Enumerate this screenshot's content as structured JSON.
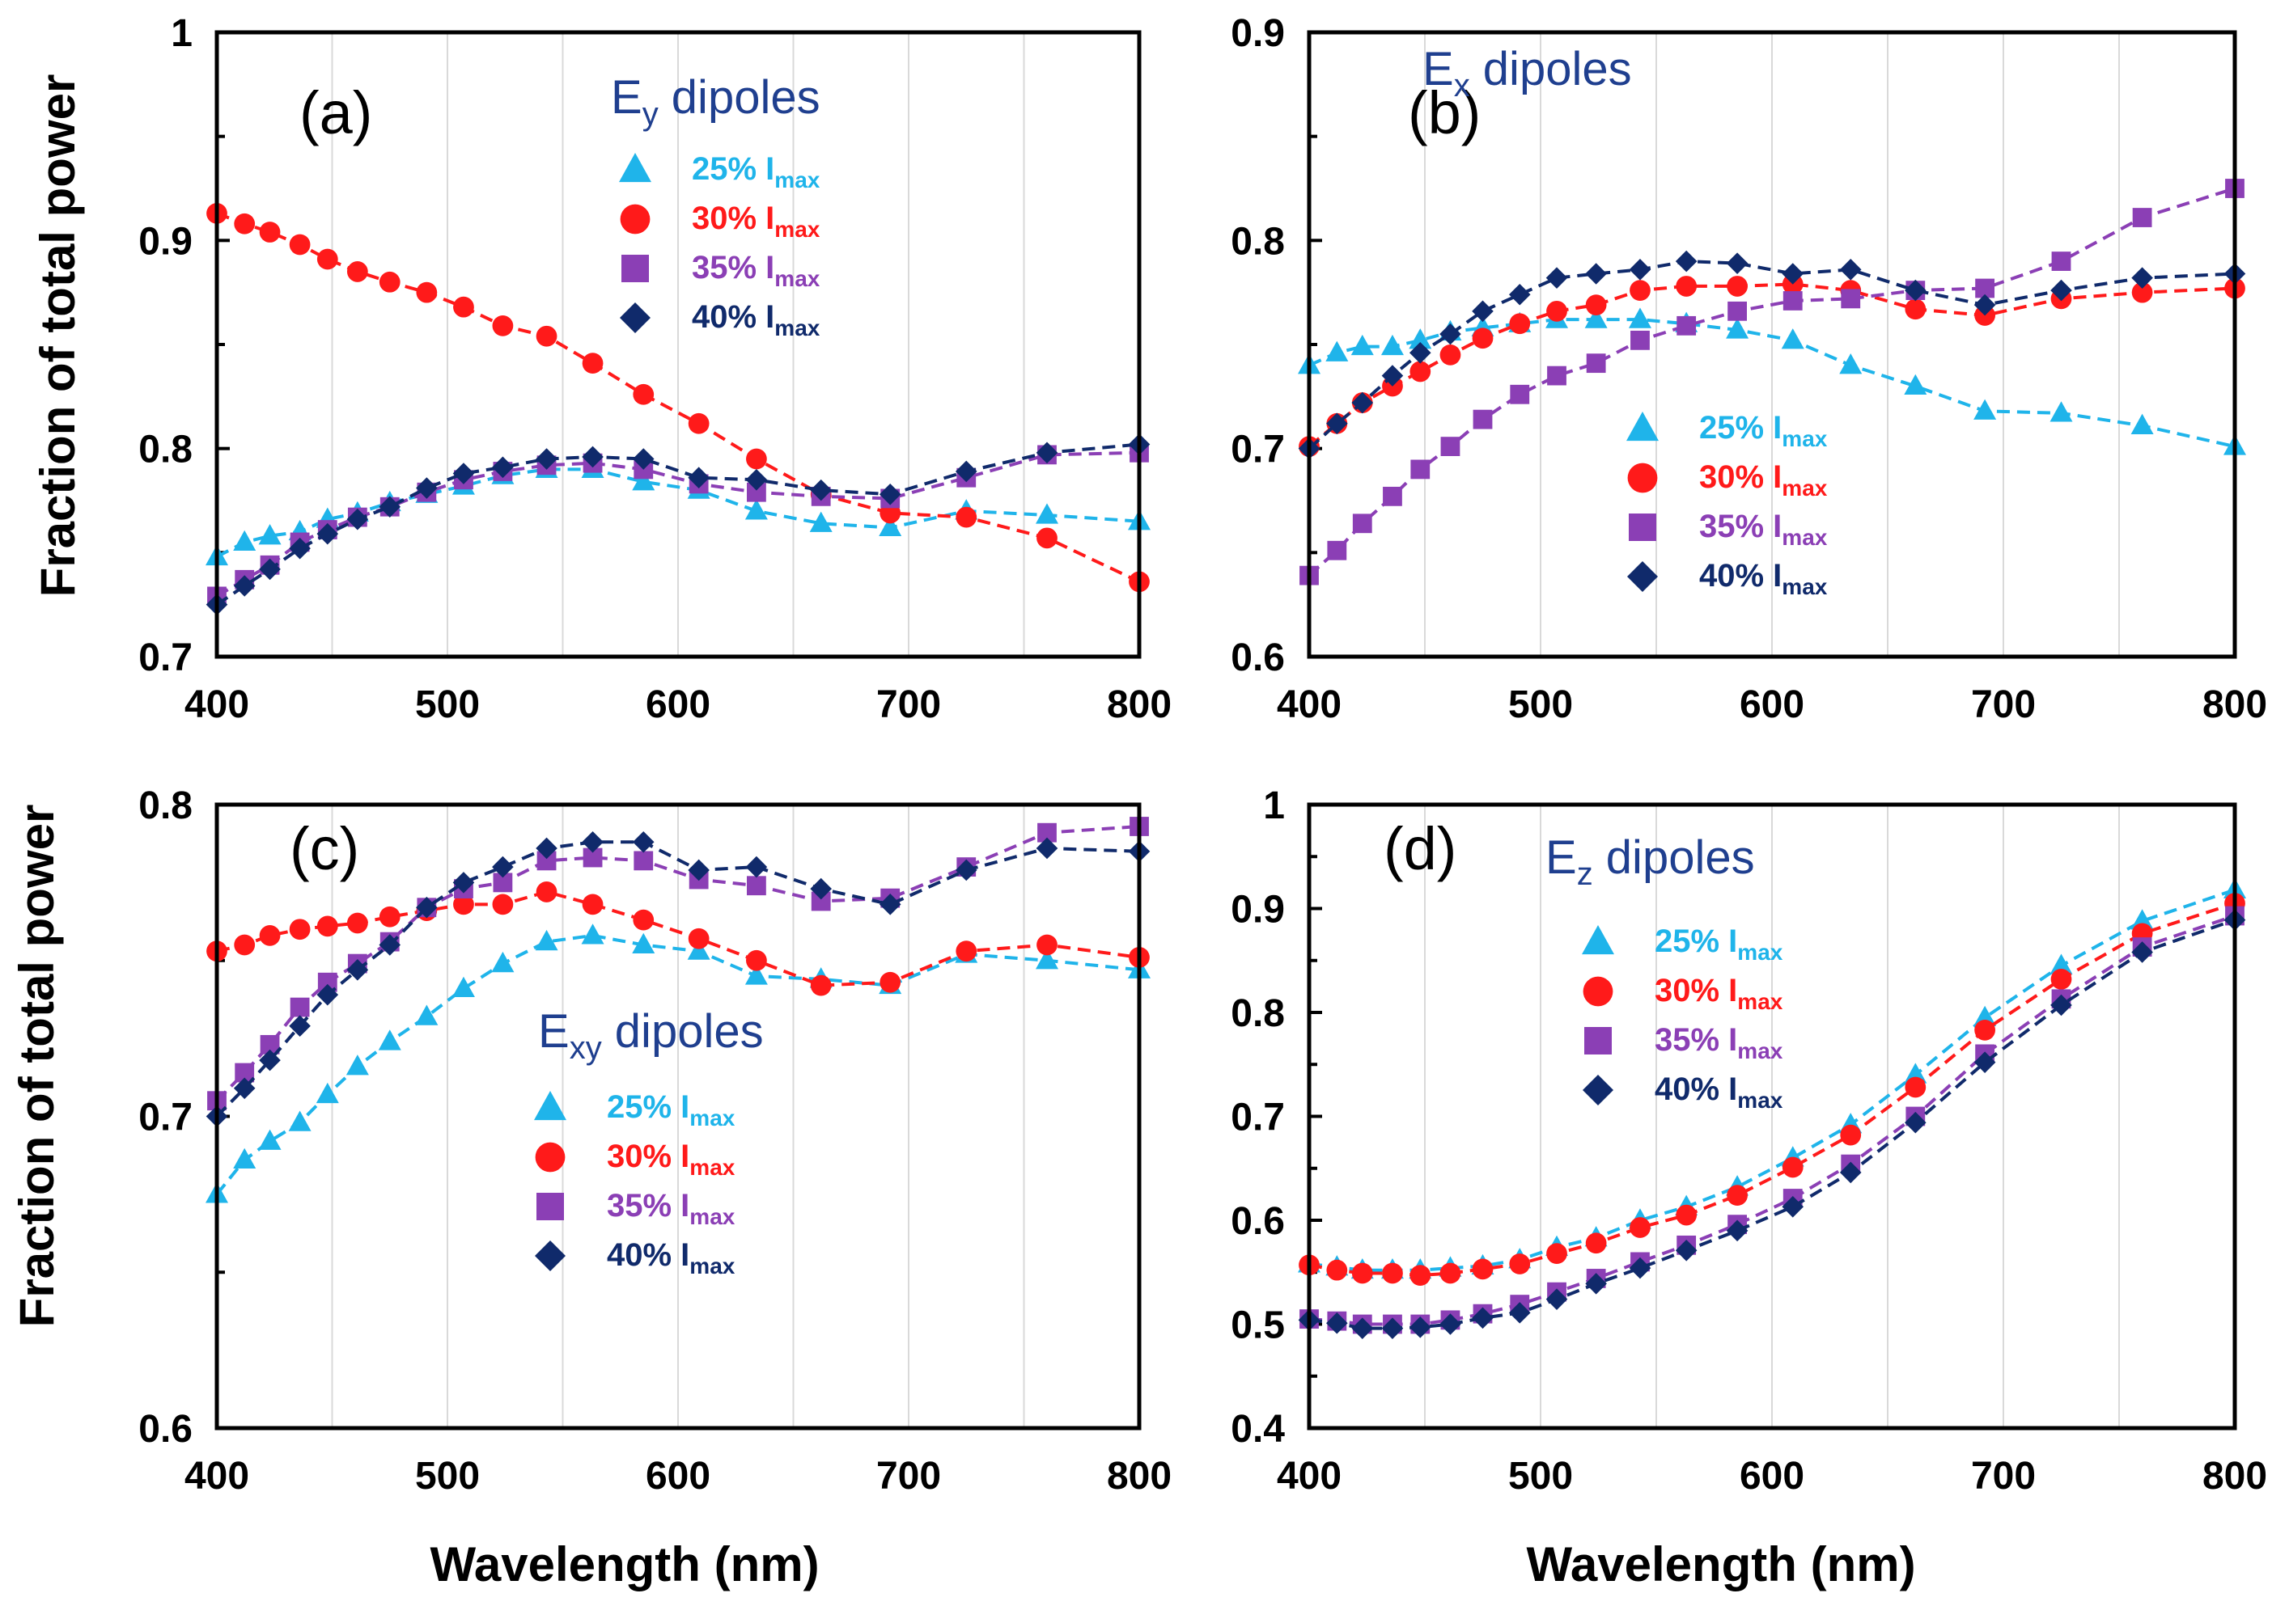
{
  "figure": {
    "ylabel": "Fraction of total power",
    "xlabel": "Wavelength (nm)"
  },
  "colors": {
    "s25": "#1fb4ea",
    "s30": "#ff1a1a",
    "s35": "#8b3fb5",
    "s40": "#102a6b",
    "title": "#1f3f8f"
  },
  "chart_data": [
    {
      "panel": "(a)",
      "type": "line",
      "title_main": "E",
      "title_sub": "y",
      "title_rest": " dipoles",
      "xlim": [
        400,
        800
      ],
      "ylim": [
        0.7,
        1.0
      ],
      "xticks": [
        "400",
        "500",
        "600",
        "700",
        "800"
      ],
      "yticks": [
        "0.7",
        "0.8",
        "0.9",
        "1"
      ],
      "x": [
        400,
        412,
        423,
        436,
        448,
        461,
        475,
        491,
        507,
        524,
        543,
        563,
        585,
        609,
        634,
        662,
        692,
        725,
        760,
        800
      ],
      "series": [
        {
          "name": "25% I",
          "sub": "max",
          "marker": "triangle",
          "values": [
            0.748,
            0.755,
            0.758,
            0.76,
            0.766,
            0.769,
            0.774,
            0.778,
            0.782,
            0.787,
            0.79,
            0.79,
            0.784,
            0.78,
            0.77,
            0.764,
            0.762,
            0.77,
            0.768,
            0.765
          ]
        },
        {
          "name": "30% I",
          "sub": "max",
          "marker": "circle",
          "values": [
            0.913,
            0.908,
            0.904,
            0.898,
            0.891,
            0.885,
            0.88,
            0.875,
            0.868,
            0.859,
            0.854,
            0.841,
            0.826,
            0.812,
            0.795,
            0.778,
            0.769,
            0.767,
            0.757,
            0.736
          ]
        },
        {
          "name": "35% I",
          "sub": "max",
          "marker": "square",
          "values": [
            0.729,
            0.737,
            0.744,
            0.755,
            0.761,
            0.767,
            0.772,
            0.779,
            0.785,
            0.789,
            0.792,
            0.793,
            0.79,
            0.783,
            0.779,
            0.777,
            0.776,
            0.786,
            0.797,
            0.798
          ]
        },
        {
          "name": "40% I",
          "sub": "max",
          "marker": "diamond",
          "values": [
            0.725,
            0.734,
            0.742,
            0.752,
            0.759,
            0.766,
            0.772,
            0.781,
            0.788,
            0.791,
            0.795,
            0.796,
            0.795,
            0.786,
            0.785,
            0.78,
            0.778,
            0.789,
            0.798,
            0.802
          ]
        }
      ]
    },
    {
      "panel": "(b)",
      "type": "line",
      "title_main": "E",
      "title_sub": "x",
      "title_rest": " dipoles",
      "xlim": [
        400,
        800
      ],
      "ylim": [
        0.6,
        0.9
      ],
      "xticks": [
        "400",
        "500",
        "600",
        "700",
        "800"
      ],
      "yticks": [
        "0.6",
        "0.7",
        "0.8",
        "0.9"
      ],
      "x": [
        400,
        412,
        423,
        436,
        448,
        461,
        475,
        491,
        507,
        524,
        543,
        563,
        585,
        609,
        634,
        662,
        692,
        725,
        760,
        800
      ],
      "series": [
        {
          "name": "25% I",
          "sub": "max",
          "marker": "triangle",
          "values": [
            0.74,
            0.746,
            0.749,
            0.749,
            0.752,
            0.756,
            0.758,
            0.76,
            0.762,
            0.762,
            0.762,
            0.76,
            0.757,
            0.752,
            0.74,
            0.73,
            0.718,
            0.717,
            0.711,
            0.701
          ]
        },
        {
          "name": "30% I",
          "sub": "max",
          "marker": "circle",
          "values": [
            0.701,
            0.712,
            0.722,
            0.73,
            0.737,
            0.745,
            0.753,
            0.76,
            0.766,
            0.769,
            0.776,
            0.778,
            0.778,
            0.779,
            0.776,
            0.767,
            0.764,
            0.772,
            0.775,
            0.777
          ]
        },
        {
          "name": "35% I",
          "sub": "max",
          "marker": "square",
          "values": [
            0.639,
            0.651,
            0.664,
            0.677,
            0.69,
            0.701,
            0.714,
            0.726,
            0.735,
            0.741,
            0.752,
            0.759,
            0.766,
            0.771,
            0.772,
            0.776,
            0.777,
            0.79,
            0.811,
            0.825
          ]
        },
        {
          "name": "40% I",
          "sub": "max",
          "marker": "diamond",
          "values": [
            0.7,
            0.712,
            0.722,
            0.735,
            0.746,
            0.755,
            0.766,
            0.774,
            0.782,
            0.784,
            0.786,
            0.79,
            0.789,
            0.784,
            0.786,
            0.776,
            0.769,
            0.776,
            0.782,
            0.784
          ]
        }
      ]
    },
    {
      "panel": "(c)",
      "type": "line",
      "title_main": "E",
      "title_sub": "xy",
      "title_rest": " dipoles",
      "xlim": [
        400,
        800
      ],
      "ylim": [
        0.6,
        0.8
      ],
      "xticks": [
        "400",
        "500",
        "600",
        "700",
        "800"
      ],
      "yticks": [
        "0.6",
        "0.7",
        "0.8"
      ],
      "x": [
        400,
        412,
        423,
        436,
        448,
        461,
        475,
        491,
        507,
        524,
        543,
        563,
        585,
        609,
        634,
        662,
        692,
        725,
        760,
        800
      ],
      "series": [
        {
          "name": "25% I",
          "sub": "max",
          "marker": "triangle",
          "values": [
            0.675,
            0.686,
            0.692,
            0.698,
            0.707,
            0.716,
            0.724,
            0.732,
            0.741,
            0.749,
            0.756,
            0.758,
            0.755,
            0.753,
            0.745,
            0.744,
            0.742,
            0.752,
            0.75,
            0.747
          ]
        },
        {
          "name": "30% I",
          "sub": "max",
          "marker": "circle",
          "values": [
            0.753,
            0.755,
            0.758,
            0.76,
            0.761,
            0.762,
            0.764,
            0.766,
            0.768,
            0.768,
            0.772,
            0.768,
            0.763,
            0.757,
            0.75,
            0.742,
            0.743,
            0.753,
            0.755,
            0.751
          ]
        },
        {
          "name": "35% I",
          "sub": "max",
          "marker": "square",
          "values": [
            0.705,
            0.714,
            0.723,
            0.735,
            0.743,
            0.749,
            0.756,
            0.767,
            0.773,
            0.775,
            0.782,
            0.783,
            0.782,
            0.776,
            0.774,
            0.769,
            0.77,
            0.78,
            0.791,
            0.793
          ]
        },
        {
          "name": "40% I",
          "sub": "max",
          "marker": "diamond",
          "values": [
            0.7,
            0.709,
            0.718,
            0.729,
            0.739,
            0.747,
            0.755,
            0.767,
            0.775,
            0.78,
            0.786,
            0.788,
            0.788,
            0.779,
            0.78,
            0.773,
            0.768,
            0.779,
            0.786,
            0.785
          ]
        }
      ]
    },
    {
      "panel": "(d)",
      "type": "line",
      "title_main": "E",
      "title_sub": "z",
      "title_rest": " dipoles",
      "xlim": [
        400,
        800
      ],
      "ylim": [
        0.4,
        1.0
      ],
      "xticks": [
        "400",
        "500",
        "600",
        "700",
        "800"
      ],
      "yticks": [
        "0.4",
        "0.5",
        "0.6",
        "0.7",
        "0.8",
        "0.9",
        "1"
      ],
      "x": [
        400,
        412,
        423,
        436,
        448,
        461,
        475,
        491,
        507,
        524,
        543,
        563,
        585,
        609,
        634,
        662,
        692,
        725,
        760,
        800
      ],
      "series": [
        {
          "name": "25% I",
          "sub": "max",
          "marker": "triangle",
          "values": [
            0.558,
            0.555,
            0.552,
            0.552,
            0.552,
            0.554,
            0.556,
            0.562,
            0.574,
            0.583,
            0.6,
            0.613,
            0.632,
            0.66,
            0.692,
            0.74,
            0.795,
            0.845,
            0.888,
            0.918
          ]
        },
        {
          "name": "30% I",
          "sub": "max",
          "marker": "circle",
          "values": [
            0.557,
            0.552,
            0.549,
            0.549,
            0.547,
            0.549,
            0.553,
            0.558,
            0.568,
            0.578,
            0.593,
            0.605,
            0.624,
            0.651,
            0.682,
            0.728,
            0.783,
            0.832,
            0.876,
            0.905
          ]
        },
        {
          "name": "35% I",
          "sub": "max",
          "marker": "square",
          "values": [
            0.505,
            0.503,
            0.5,
            0.5,
            0.5,
            0.504,
            0.51,
            0.519,
            0.531,
            0.544,
            0.56,
            0.576,
            0.596,
            0.621,
            0.654,
            0.7,
            0.76,
            0.813,
            0.863,
            0.893
          ]
        },
        {
          "name": "40% I",
          "sub": "max",
          "marker": "diamond",
          "values": [
            0.504,
            0.501,
            0.496,
            0.496,
            0.497,
            0.5,
            0.506,
            0.511,
            0.524,
            0.539,
            0.554,
            0.571,
            0.59,
            0.613,
            0.646,
            0.694,
            0.752,
            0.807,
            0.858,
            0.889
          ]
        }
      ]
    }
  ]
}
